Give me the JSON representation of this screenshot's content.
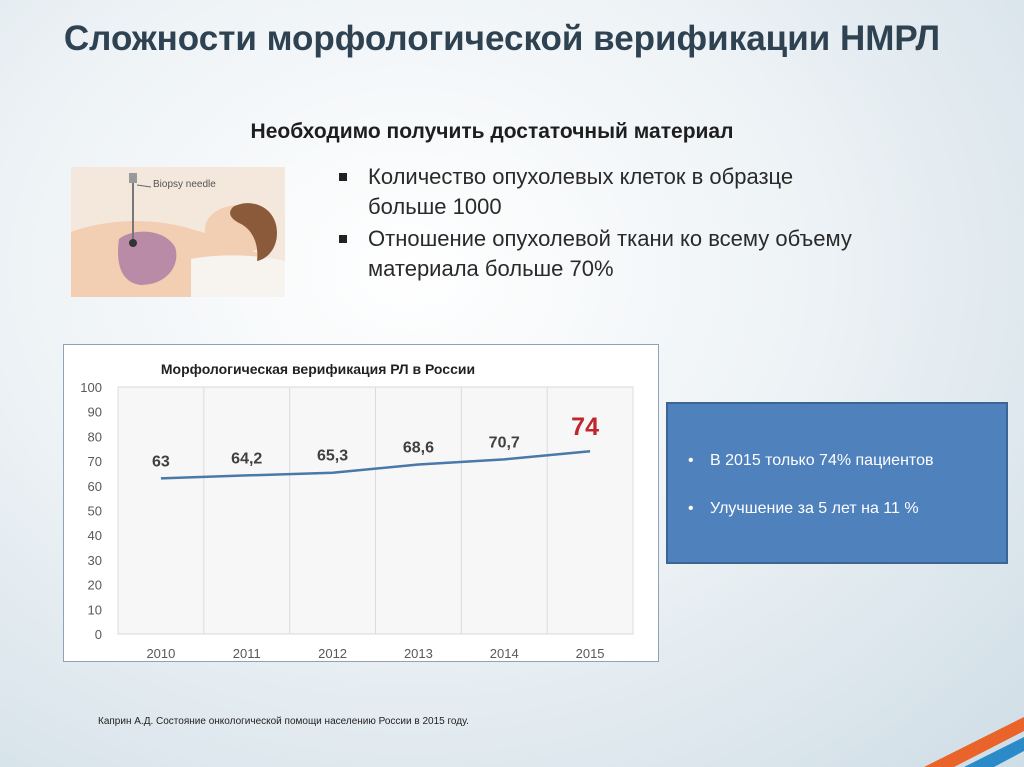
{
  "slide": {
    "title": "Сложности морфологической верификации НМРЛ",
    "subtitle": "Необходимо получить достаточный материал",
    "illustration_label": "Biopsy needle",
    "bullets": [
      "Количество опухолевых клеток в образце больше 1000",
      "Отношение опухолевой ткани ко всему объему материала больше 70%"
    ],
    "info_box": {
      "items": [
        "В 2015 только 74% пациентов",
        "Улучшение за 5 лет на 11 %"
      ]
    },
    "source": "Каприн А.Д. Состояние онкологической помощи населению России в 2015 году.",
    "colors": {
      "title": "#2f4252",
      "line": "#4a78a8",
      "highlight_label": "#c0262c",
      "info_box": "#4f81bd",
      "accent_stripe_orange": "#e9632b",
      "accent_stripe_blue": "#2a8bc8"
    }
  },
  "chart_data": {
    "type": "line",
    "title": "Морфологическая верификация РЛ в России",
    "categories": [
      "2010",
      "2011",
      "2012",
      "2013",
      "2014",
      "2015"
    ],
    "values": [
      63,
      64.2,
      65.3,
      68.6,
      70.7,
      74
    ],
    "value_labels": [
      "63",
      "64,2",
      "65,3",
      "68,6",
      "70,7",
      "74"
    ],
    "highlight_index": 5,
    "ylim": [
      0,
      100
    ],
    "yticks": [
      "0",
      "10",
      "20",
      "30",
      "40",
      "50",
      "60",
      "70",
      "80",
      "90",
      "100"
    ],
    "grid": "vertical",
    "legend": "none"
  }
}
